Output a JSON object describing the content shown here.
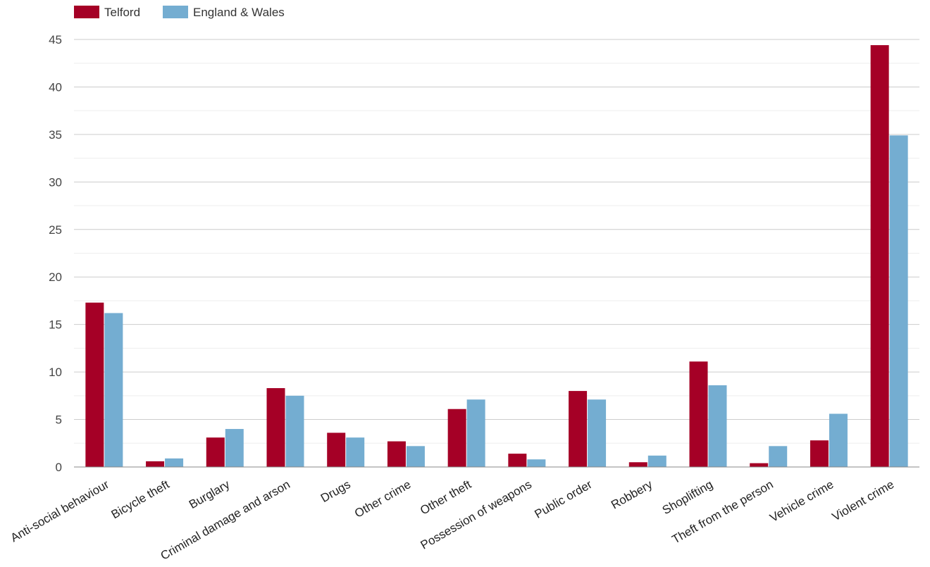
{
  "chart_data": {
    "type": "bar",
    "title": "",
    "xlabel": "",
    "ylabel": "",
    "ylim": [
      0,
      45
    ],
    "yticks": [
      0,
      5,
      10,
      15,
      20,
      25,
      30,
      35,
      40,
      45
    ],
    "grid": true,
    "legend_position": "top-left",
    "categories": [
      "Anti-social behaviour",
      "Bicycle theft",
      "Burglary",
      "Criminal damage and arson",
      "Drugs",
      "Other crime",
      "Other theft",
      "Possession of weapons",
      "Public order",
      "Robbery",
      "Shoplifting",
      "Theft from the person",
      "Vehicle crime",
      "Violent crime"
    ],
    "series": [
      {
        "name": "Telford",
        "color": "#a50026",
        "values": [
          17.3,
          0.6,
          3.1,
          8.3,
          3.6,
          2.7,
          6.1,
          1.4,
          8.0,
          0.5,
          11.1,
          0.4,
          2.8,
          44.4
        ]
      },
      {
        "name": "England & Wales",
        "color": "#74add1",
        "values": [
          16.2,
          0.9,
          4.0,
          7.5,
          3.1,
          2.2,
          7.1,
          0.8,
          7.1,
          1.2,
          8.6,
          2.2,
          5.6,
          34.9
        ]
      }
    ]
  }
}
